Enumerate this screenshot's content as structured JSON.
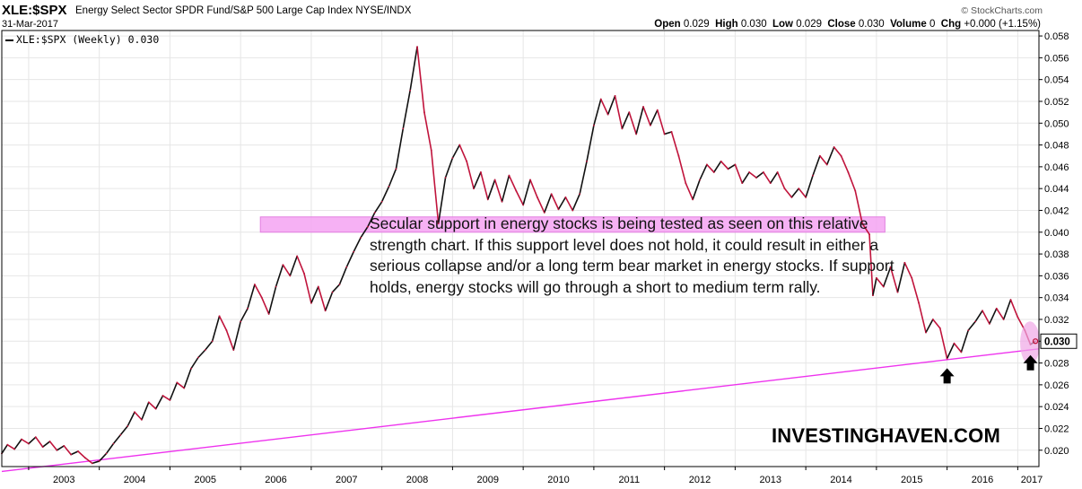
{
  "header": {
    "symbol": "XLE:$SPX",
    "description": "Energy Select Sector SPDR Fund/S&P 500 Large Cap Index  NYSE/INDX",
    "date": "31-Mar-2017",
    "credit": "© StockCharts.com",
    "ohlc": {
      "open_label": "Open",
      "open": "0.029",
      "high_label": "High",
      "high": "0.030",
      "low_label": "Low",
      "low": "0.029",
      "close_label": "Close",
      "close": "0.030",
      "volume_label": "Volume",
      "volume": "0",
      "chg_label": "Chg",
      "chg": "+0.000 (+1.15%)"
    }
  },
  "legend": {
    "label": "XLE:$SPX (Weekly) 0.030"
  },
  "annotation": "Secular support in energy stocks is being tested as seen on this relative strength chart. If this support level does not hold, it could result in either a serious collapse and/or a long term bear market in energy stocks. If support holds, energy stocks will go through a short to medium term rally.",
  "watermark": "INVESTINGHAVEN.COM",
  "colors": {
    "up": "#111111",
    "down": "#c0143c",
    "zone": "#f5a3f2",
    "trendline": "#ee33ee",
    "circle": "#f0a6e6"
  },
  "chart_data": {
    "type": "line",
    "y_axis_side": "right",
    "ylim": [
      0.0185,
      0.0585
    ],
    "xlim": [
      2002.62,
      2017.3
    ],
    "y_ticks": [
      "0.020",
      "0.022",
      "0.024",
      "0.026",
      "0.028",
      "0.030",
      "0.032",
      "0.034",
      "0.036",
      "0.038",
      "0.040",
      "0.042",
      "0.044",
      "0.046",
      "0.048",
      "0.050",
      "0.052",
      "0.054",
      "0.056",
      "0.058"
    ],
    "x_ticks": [
      "2003",
      "2004",
      "2005",
      "2006",
      "2007",
      "2008",
      "2009",
      "2010",
      "2011",
      "2012",
      "2013",
      "2014",
      "2015",
      "2016",
      "2017"
    ],
    "last_value_label": "0.030",
    "series": [
      {
        "values": [
          [
            2002.62,
            0.0197
          ],
          [
            2002.7,
            0.0205
          ],
          [
            2002.8,
            0.0201
          ],
          [
            2002.9,
            0.021
          ],
          [
            2003.0,
            0.0206
          ],
          [
            2003.1,
            0.0212
          ],
          [
            2003.2,
            0.0203
          ],
          [
            2003.3,
            0.0208
          ],
          [
            2003.4,
            0.02
          ],
          [
            2003.5,
            0.0204
          ],
          [
            2003.6,
            0.0196
          ],
          [
            2003.7,
            0.0199
          ],
          [
            2003.8,
            0.0193
          ],
          [
            2003.9,
            0.0188
          ],
          [
            2004.0,
            0.019
          ],
          [
            2004.1,
            0.0197
          ],
          [
            2004.2,
            0.0206
          ],
          [
            2004.3,
            0.0214
          ],
          [
            2004.4,
            0.0222
          ],
          [
            2004.5,
            0.0235
          ],
          [
            2004.6,
            0.0228
          ],
          [
            2004.7,
            0.0244
          ],
          [
            2004.8,
            0.0238
          ],
          [
            2004.9,
            0.025
          ],
          [
            2005.0,
            0.0246
          ],
          [
            2005.1,
            0.0262
          ],
          [
            2005.2,
            0.0257
          ],
          [
            2005.3,
            0.0275
          ],
          [
            2005.4,
            0.0285
          ],
          [
            2005.5,
            0.0292
          ],
          [
            2005.6,
            0.03
          ],
          [
            2005.7,
            0.0323
          ],
          [
            2005.8,
            0.031
          ],
          [
            2005.9,
            0.0292
          ],
          [
            2006.0,
            0.0318
          ],
          [
            2006.1,
            0.033
          ],
          [
            2006.2,
            0.0352
          ],
          [
            2006.3,
            0.034
          ],
          [
            2006.4,
            0.0325
          ],
          [
            2006.5,
            0.035
          ],
          [
            2006.6,
            0.037
          ],
          [
            2006.7,
            0.036
          ],
          [
            2006.8,
            0.0378
          ],
          [
            2006.9,
            0.0362
          ],
          [
            2007.0,
            0.0335
          ],
          [
            2007.1,
            0.035
          ],
          [
            2007.2,
            0.0328
          ],
          [
            2007.3,
            0.0345
          ],
          [
            2007.4,
            0.0352
          ],
          [
            2007.5,
            0.0368
          ],
          [
            2007.6,
            0.0382
          ],
          [
            2007.7,
            0.0395
          ],
          [
            2007.8,
            0.0405
          ],
          [
            2007.9,
            0.0418
          ],
          [
            2008.0,
            0.0428
          ],
          [
            2008.1,
            0.0442
          ],
          [
            2008.2,
            0.0458
          ],
          [
            2008.3,
            0.0495
          ],
          [
            2008.4,
            0.053
          ],
          [
            2008.5,
            0.057
          ],
          [
            2008.6,
            0.051
          ],
          [
            2008.7,
            0.0475
          ],
          [
            2008.8,
            0.0408
          ],
          [
            2008.9,
            0.045
          ],
          [
            2009.0,
            0.0468
          ],
          [
            2009.1,
            0.048
          ],
          [
            2009.2,
            0.0465
          ],
          [
            2009.3,
            0.044
          ],
          [
            2009.4,
            0.0455
          ],
          [
            2009.5,
            0.043
          ],
          [
            2009.6,
            0.0448
          ],
          [
            2009.7,
            0.0428
          ],
          [
            2009.8,
            0.0452
          ],
          [
            2009.9,
            0.0438
          ],
          [
            2010.0,
            0.0425
          ],
          [
            2010.1,
            0.0448
          ],
          [
            2010.2,
            0.0432
          ],
          [
            2010.3,
            0.0418
          ],
          [
            2010.4,
            0.0435
          ],
          [
            2010.5,
            0.0421
          ],
          [
            2010.6,
            0.0432
          ],
          [
            2010.7,
            0.042
          ],
          [
            2010.8,
            0.0435
          ],
          [
            2010.9,
            0.0465
          ],
          [
            2011.0,
            0.0498
          ],
          [
            2011.1,
            0.0522
          ],
          [
            2011.2,
            0.0508
          ],
          [
            2011.3,
            0.0525
          ],
          [
            2011.4,
            0.0495
          ],
          [
            2011.5,
            0.051
          ],
          [
            2011.6,
            0.049
          ],
          [
            2011.7,
            0.0515
          ],
          [
            2011.8,
            0.0498
          ],
          [
            2011.9,
            0.0512
          ],
          [
            2012.0,
            0.049
          ],
          [
            2012.1,
            0.0492
          ],
          [
            2012.2,
            0.047
          ],
          [
            2012.3,
            0.0445
          ],
          [
            2012.4,
            0.043
          ],
          [
            2012.5,
            0.0448
          ],
          [
            2012.6,
            0.0462
          ],
          [
            2012.7,
            0.0455
          ],
          [
            2012.8,
            0.0465
          ],
          [
            2012.9,
            0.0458
          ],
          [
            2013.0,
            0.0462
          ],
          [
            2013.1,
            0.0445
          ],
          [
            2013.2,
            0.0455
          ],
          [
            2013.3,
            0.045
          ],
          [
            2013.4,
            0.0455
          ],
          [
            2013.5,
            0.0445
          ],
          [
            2013.6,
            0.0455
          ],
          [
            2013.7,
            0.044
          ],
          [
            2013.8,
            0.0432
          ],
          [
            2013.9,
            0.044
          ],
          [
            2014.0,
            0.0432
          ],
          [
            2014.1,
            0.0452
          ],
          [
            2014.2,
            0.047
          ],
          [
            2014.3,
            0.0462
          ],
          [
            2014.4,
            0.0478
          ],
          [
            2014.5,
            0.047
          ],
          [
            2014.6,
            0.0455
          ],
          [
            2014.7,
            0.0438
          ],
          [
            2014.8,
            0.0408
          ],
          [
            2014.9,
            0.0398
          ],
          [
            2014.95,
            0.0342
          ],
          [
            2015.0,
            0.0358
          ],
          [
            2015.1,
            0.035
          ],
          [
            2015.2,
            0.0368
          ],
          [
            2015.3,
            0.0345
          ],
          [
            2015.4,
            0.0372
          ],
          [
            2015.5,
            0.0358
          ],
          [
            2015.6,
            0.0335
          ],
          [
            2015.7,
            0.0308
          ],
          [
            2015.8,
            0.032
          ],
          [
            2015.9,
            0.0312
          ],
          [
            2016.0,
            0.0284
          ],
          [
            2016.1,
            0.0298
          ],
          [
            2016.2,
            0.029
          ],
          [
            2016.3,
            0.031
          ],
          [
            2016.4,
            0.0318
          ],
          [
            2016.5,
            0.0328
          ],
          [
            2016.6,
            0.0316
          ],
          [
            2016.7,
            0.033
          ],
          [
            2016.8,
            0.032
          ],
          [
            2016.9,
            0.0338
          ],
          [
            2017.0,
            0.0322
          ],
          [
            2017.1,
            0.031
          ],
          [
            2017.18,
            0.0297
          ],
          [
            2017.25,
            0.03
          ]
        ]
      }
    ],
    "support_zone": {
      "y_range": [
        0.04,
        0.0414
      ],
      "x_range": [
        2006.28,
        2015.12
      ]
    },
    "trendline": {
      "from": [
        2002.62,
        0.01805
      ],
      "to": [
        2017.3,
        0.0293
      ]
    },
    "markers": [
      {
        "type": "up-arrow",
        "x": 2016.0,
        "y": 0.0267
      },
      {
        "type": "up-arrow",
        "x": 2017.18,
        "y": 0.0279
      }
    ]
  }
}
